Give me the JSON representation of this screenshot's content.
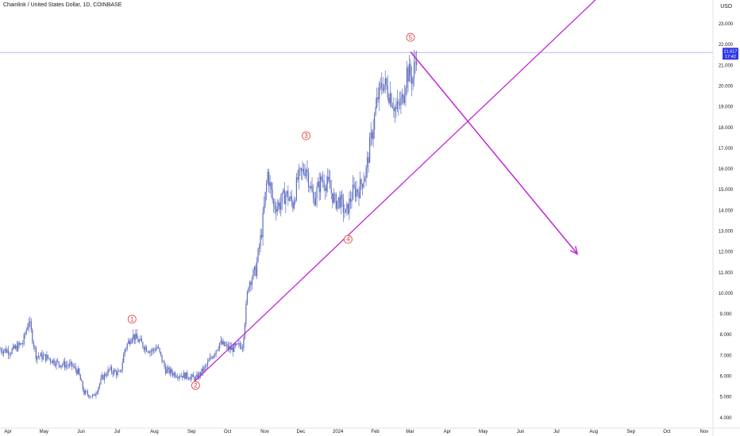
{
  "header": {
    "symbol_title": "Chainlink / United States Dollar, 1D, COINBASE",
    "currency": "USD"
  },
  "chart_data": {
    "type": "candlestick",
    "symbol": "Chainlink / United States Dollar",
    "interval": "1D",
    "exchange": "COINBASE",
    "y_axis": {
      "ticks": [
        "4.000",
        "5.000",
        "6.000",
        "7.000",
        "8.000",
        "9.000",
        "10.000",
        "11.000",
        "12.000",
        "13.000",
        "14.000",
        "15.000",
        "16.000",
        "17.000",
        "18.000",
        "19.000",
        "20.000",
        "21.000",
        "22.000",
        "23.000"
      ],
      "ylim": [
        3.8,
        23.5
      ]
    },
    "x_axis": {
      "ticks": [
        "Apr",
        "May",
        "Jun",
        "Jul",
        "Aug",
        "Sep",
        "Oct",
        "Nov",
        "Dec",
        "2024",
        "Feb",
        "Mar",
        "Apr",
        "May",
        "Jun",
        "Jul",
        "Aug",
        "Sep",
        "Oct",
        "Nov"
      ],
      "range": [
        "2023-04-01",
        "2024-11-15"
      ]
    },
    "current_price": "21.617",
    "countdown": "17:42",
    "price_points": [
      [
        "2023-04-01",
        7.3
      ],
      [
        "2023-04-10",
        7.2
      ],
      [
        "2023-04-20",
        7.6
      ],
      [
        "2023-04-25",
        8.7
      ],
      [
        "2023-05-01",
        7.0
      ],
      [
        "2023-05-10",
        6.9
      ],
      [
        "2023-05-20",
        6.6
      ],
      [
        "2023-05-31",
        6.5
      ],
      [
        "2023-06-05",
        6.2
      ],
      [
        "2023-06-10",
        5.2
      ],
      [
        "2023-06-18",
        5.0
      ],
      [
        "2023-06-25",
        5.9
      ],
      [
        "2023-07-01",
        6.3
      ],
      [
        "2023-07-10",
        6.1
      ],
      [
        "2023-07-14",
        7.3
      ],
      [
        "2023-07-20",
        8.0
      ],
      [
        "2023-07-31",
        7.4
      ],
      [
        "2023-08-05",
        7.2
      ],
      [
        "2023-08-10",
        7.4
      ],
      [
        "2023-08-17",
        6.3
      ],
      [
        "2023-08-25",
        6.1
      ],
      [
        "2023-09-05",
        6.0
      ],
      [
        "2023-09-11",
        5.85
      ],
      [
        "2023-09-20",
        6.5
      ],
      [
        "2023-10-01",
        7.6
      ],
      [
        "2023-10-10",
        7.3
      ],
      [
        "2023-10-20",
        7.5
      ],
      [
        "2023-10-25",
        10.5
      ],
      [
        "2023-10-31",
        11.1
      ],
      [
        "2023-11-05",
        13.0
      ],
      [
        "2023-11-10",
        15.8
      ],
      [
        "2023-11-15",
        14.2
      ],
      [
        "2023-11-20",
        14.3
      ],
      [
        "2023-11-25",
        14.8
      ],
      [
        "2023-12-01",
        14.3
      ],
      [
        "2023-12-05",
        15.5
      ],
      [
        "2023-12-12",
        16.1
      ],
      [
        "2023-12-18",
        14.5
      ],
      [
        "2023-12-25",
        15.5
      ],
      [
        "2023-12-31",
        15.2
      ],
      [
        "2024-01-05",
        14.4
      ],
      [
        "2024-01-09",
        14.5
      ],
      [
        "2024-01-14",
        13.8
      ],
      [
        "2024-01-20",
        14.9
      ],
      [
        "2024-01-25",
        15.0
      ],
      [
        "2024-01-31",
        15.9
      ],
      [
        "2024-02-05",
        17.8
      ],
      [
        "2024-02-10",
        19.5
      ],
      [
        "2024-02-14",
        20.2
      ],
      [
        "2024-02-20",
        19.6
      ],
      [
        "2024-02-25",
        18.8
      ],
      [
        "2024-03-01",
        19.3
      ],
      [
        "2024-03-05",
        20.7
      ],
      [
        "2024-03-10",
        20.4
      ],
      [
        "2024-03-13",
        21.6
      ]
    ],
    "wave_labels": [
      {
        "label": "1",
        "date": "2023-07-20",
        "value": 8.75
      },
      {
        "label": "2",
        "date": "2023-09-11",
        "value": 5.55
      },
      {
        "label": "3",
        "date": "2023-12-12",
        "value": 17.6
      },
      {
        "label": "4",
        "date": "2024-01-16",
        "value": 12.6
      },
      {
        "label": "5",
        "date": "2024-03-08",
        "value": 22.35
      }
    ],
    "trend_line": {
      "from": {
        "date": "2023-09-11",
        "value": 5.8
      },
      "to": {
        "date": "2024-01-16",
        "value": 12.8
      }
    },
    "projection_arrow": {
      "from": {
        "date": "2024-03-08",
        "value": 21.65
      },
      "to": {
        "date": "2024-07-25",
        "value": 11.9
      }
    },
    "horizontal_level": 21.617,
    "colors": {
      "candles": "#5c6bc0",
      "drawings": "#c026d3",
      "wave_labels": "#e53935",
      "price_label_bg": "#2f39e8",
      "level_line": "#9fa8f5"
    }
  }
}
